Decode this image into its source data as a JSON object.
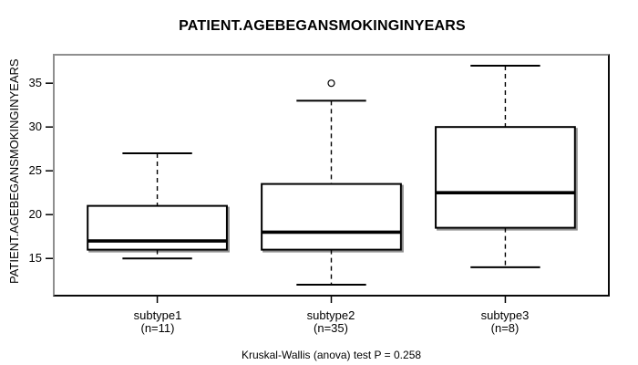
{
  "chart_data": {
    "type": "boxplot",
    "title": "PATIENT.AGEBEGANSMOKINGINYEARS",
    "ylabel": "PATIENT.AGEBEGANSMOKINGINYEARS",
    "xlabel": "",
    "annotation": "Kruskal-Wallis (anova) test P = 0.258",
    "ylim": [
      10.65,
      38.35
    ],
    "yticks": [
      15,
      20,
      25,
      30,
      35
    ],
    "legend": null,
    "grid": false,
    "groups": [
      {
        "label": "subtype1",
        "n_label": "(n=11)",
        "n": 11,
        "whisker_low": 15,
        "q1": 16,
        "median": 17,
        "q3": 21,
        "whisker_high": 27,
        "outliers": []
      },
      {
        "label": "subtype2",
        "n_label": "(n=35)",
        "n": 35,
        "whisker_low": 12,
        "q1": 16,
        "median": 18,
        "q3": 23.5,
        "whisker_high": 33,
        "outliers": [
          35
        ]
      },
      {
        "label": "subtype3",
        "n_label": "(n=8)",
        "n": 8,
        "whisker_low": 14,
        "q1": 18.5,
        "median": 22.5,
        "q3": 30,
        "whisker_high": 37,
        "outliers": []
      }
    ],
    "colors": {
      "line": "#000000",
      "box_fill": "#ffffff",
      "shadow": "#8f8f8f",
      "background": "#ffffff"
    }
  }
}
